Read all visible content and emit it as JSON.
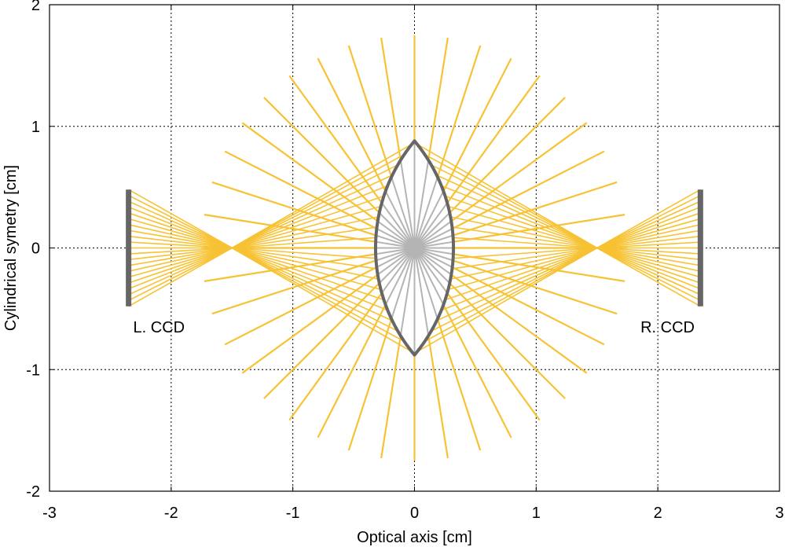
{
  "chart_data": {
    "type": "diagram",
    "xlabel": "Optical axis [cm]",
    "ylabel": "Cylindrical symetry [cm]",
    "xlim": [
      -3,
      3
    ],
    "ylim": [
      -2,
      2
    ],
    "xticks": [
      -3,
      -2,
      -1,
      0,
      1,
      2,
      3
    ],
    "yticks": [
      -2,
      -1,
      0,
      1,
      2
    ],
    "grid": true,
    "grid_style": "dotted",
    "colors": {
      "rays": "#f7c233",
      "inner_rays": "#b4b4b4",
      "lens": "#666666",
      "ccd": "#666666"
    },
    "lens": {
      "center_x": 0,
      "half_height": 0.88,
      "half_thickness": 0.32
    },
    "ray_source": [
      0,
      0
    ],
    "ray_count": 40,
    "outer_ray_radius": 1.75,
    "focal_points": [
      {
        "x": -1.5,
        "y": 0
      },
      {
        "x": 1.5,
        "y": 0
      }
    ],
    "focused_ray_count": 21,
    "ccds": [
      {
        "label": "L. CCD",
        "x": -2.35,
        "y_min": -0.48,
        "y_max": 0.48,
        "label_x": -2.1,
        "label_y": -0.65
      },
      {
        "label": "R. CCD",
        "x": 2.35,
        "y_min": -0.48,
        "y_max": 0.48,
        "label_x": 2.08,
        "label_y": -0.65
      }
    ]
  }
}
